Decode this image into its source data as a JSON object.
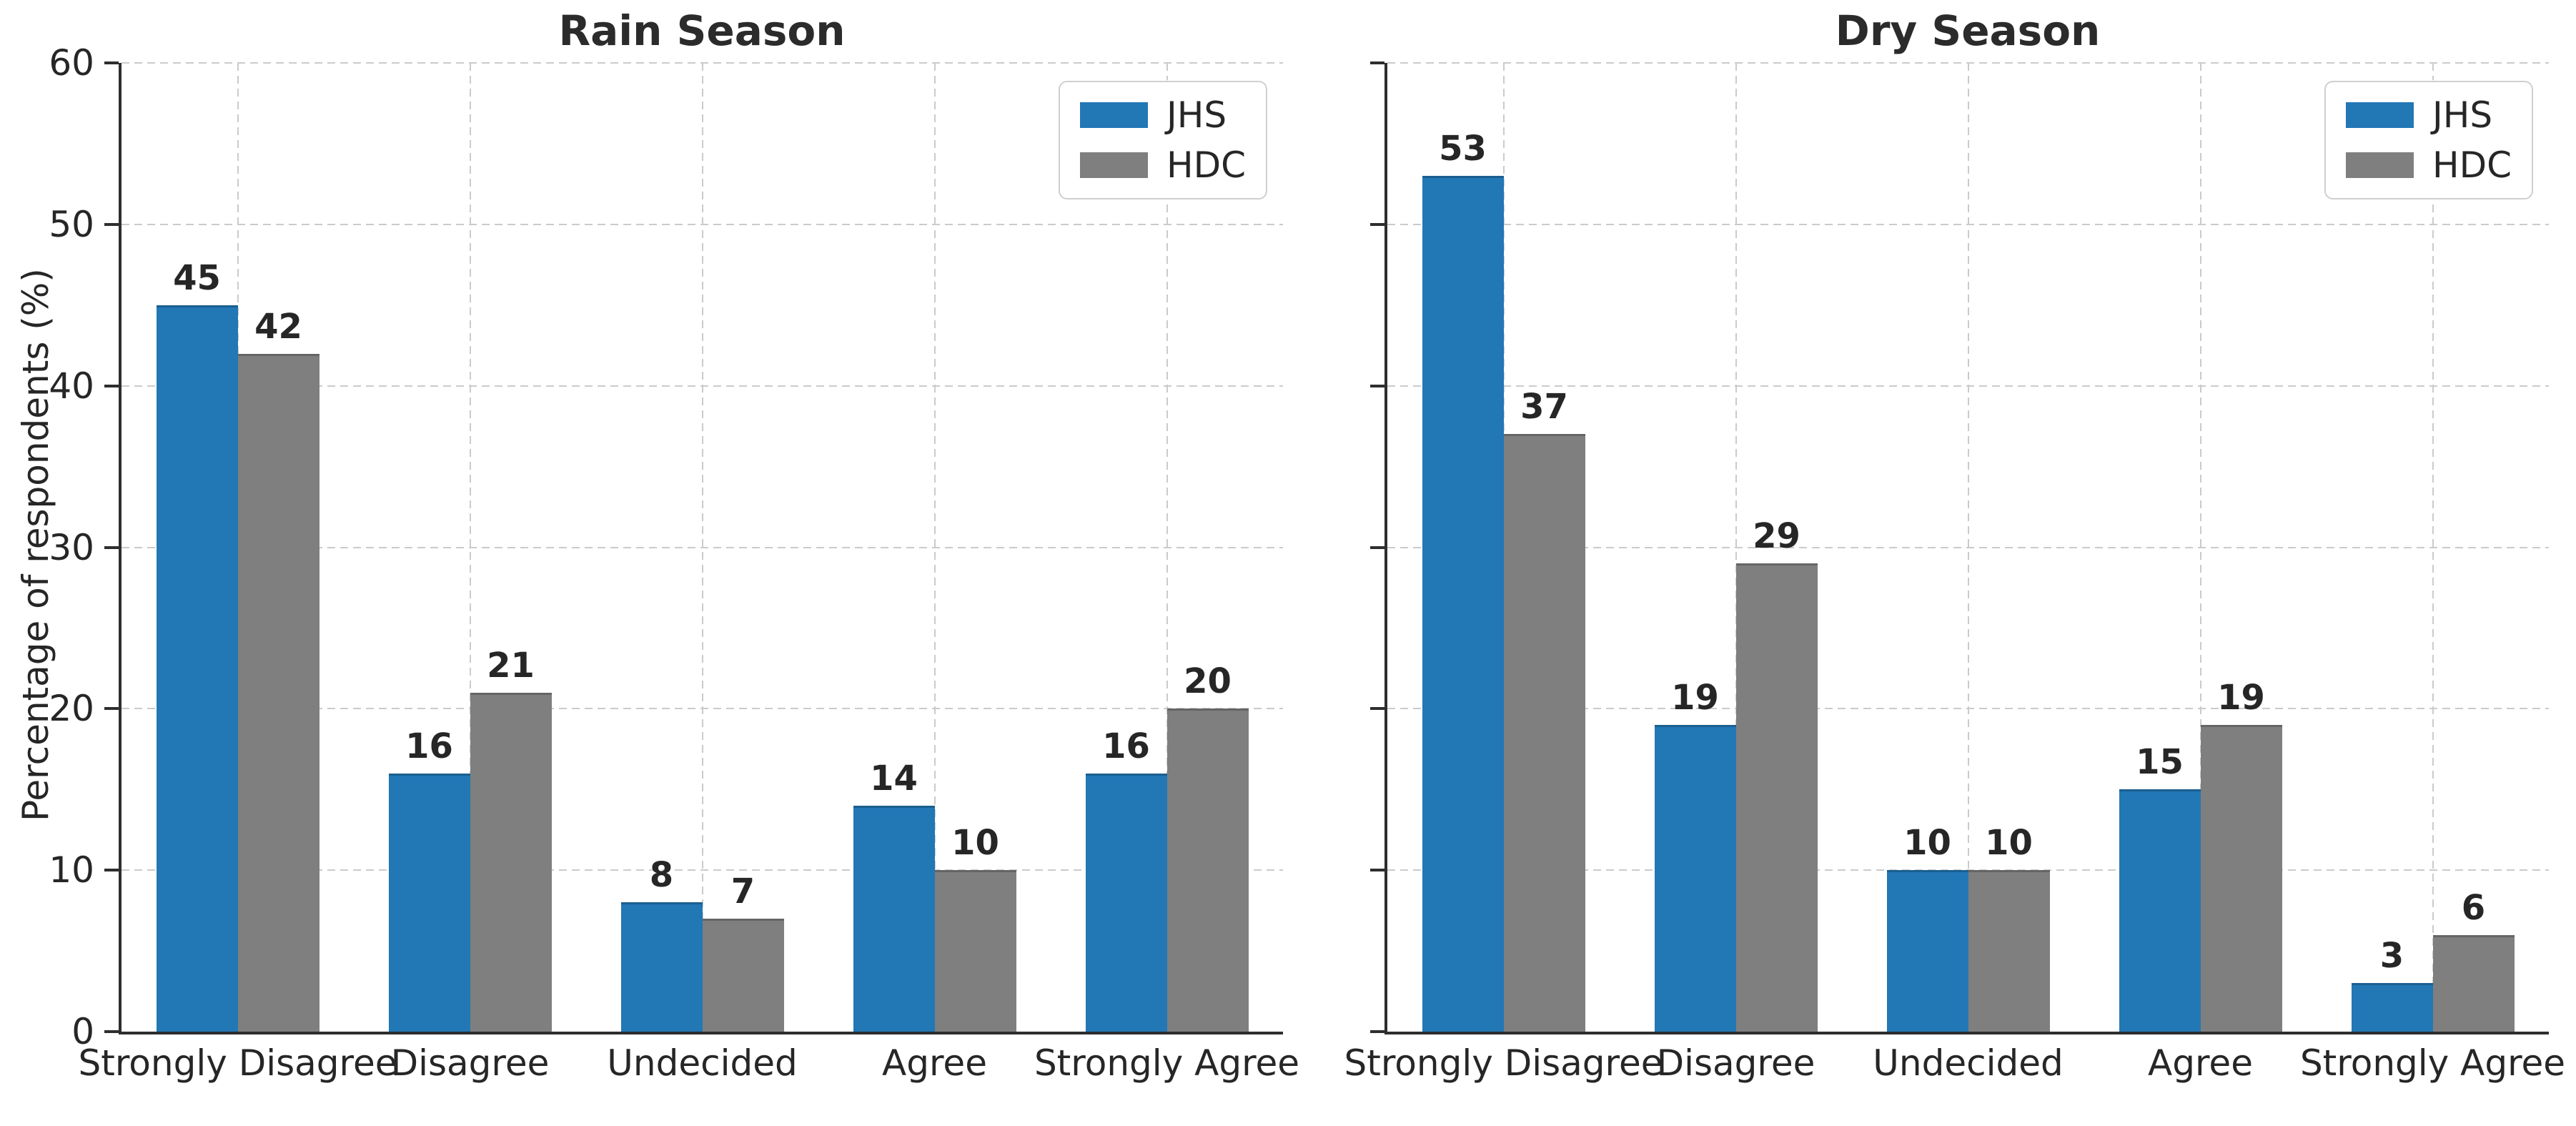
{
  "figure": {
    "background": "#ffffff",
    "text_color": "#262626",
    "title_color": "#2b2b2b",
    "axis_color": "#2e2e2e",
    "grid_color": "#cbcbcb"
  },
  "categories": [
    "Strongly Disagree",
    "Disagree",
    "Undecided",
    "Agree",
    "Strongly Agree"
  ],
  "legend": {
    "entries": [
      {
        "label": "JHS",
        "color": "#2277b5"
      },
      {
        "label": "HDC",
        "color": "#7f7f7f"
      }
    ],
    "position": "upper right"
  },
  "chart_data": [
    {
      "type": "bar",
      "title": "Rain Season",
      "ylabel": "Percentage of respondents (%)",
      "xlabel": "",
      "categories": [
        "Strongly Disagree",
        "Disagree",
        "Undecided",
        "Agree",
        "Strongly Agree"
      ],
      "series": [
        {
          "name": "JHS",
          "color": "#2277b5",
          "values": [
            45,
            16,
            8,
            14,
            16
          ]
        },
        {
          "name": "HDC",
          "color": "#7f7f7f",
          "values": [
            42,
            21,
            7,
            10,
            20
          ]
        }
      ],
      "ylim": [
        0,
        60
      ],
      "yticks": [
        0,
        10,
        20,
        30,
        40,
        50,
        60
      ],
      "grid": "dashed, horizontal and vertical",
      "legend_position": "upper right",
      "show_ytick_labels": true,
      "bar_value_labels": true
    },
    {
      "type": "bar",
      "title": "Dry Season",
      "ylabel": "",
      "xlabel": "",
      "categories": [
        "Strongly Disagree",
        "Disagree",
        "Undecided",
        "Agree",
        "Strongly Agree"
      ],
      "series": [
        {
          "name": "JHS",
          "color": "#2277b5",
          "values": [
            53,
            19,
            10,
            15,
            3
          ]
        },
        {
          "name": "HDC",
          "color": "#7f7f7f",
          "values": [
            37,
            29,
            10,
            19,
            6
          ]
        }
      ],
      "ylim": [
        0,
        60
      ],
      "yticks": [
        0,
        10,
        20,
        30,
        40,
        50,
        60
      ],
      "grid": "dashed, horizontal and vertical",
      "legend_position": "upper right",
      "show_ytick_labels": false,
      "bar_value_labels": true
    }
  ]
}
